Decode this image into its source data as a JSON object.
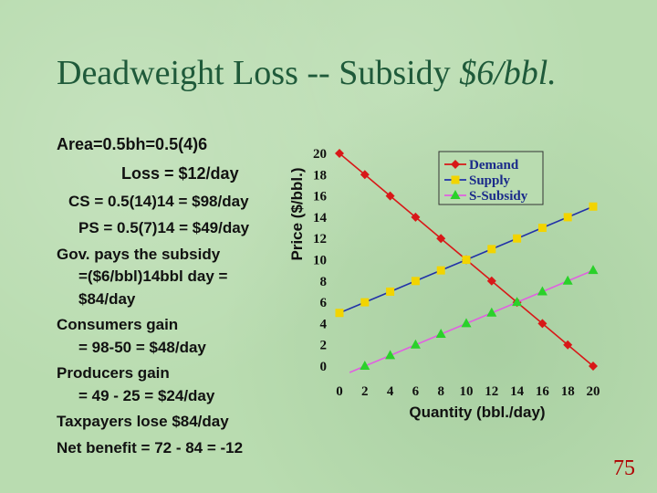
{
  "slide": {
    "title_plain": "Deadweight Loss -- Subsidy ",
    "title_italic": "$6/bbl.",
    "page_number": "75"
  },
  "text_lines": [
    "Area=0.5bh=0.5(4)6",
    "Loss = $12/day",
    "CS = 0.5(14)14 = $98/day",
    "PS = 0.5(7)14 = $49/day",
    "Gov. pays the subsidy",
    "=($6/bbl)14bbl day =",
    "$84/day",
    "Consumers gain",
    "= 98-50 = $48/day",
    "Producers gain",
    "= 49 - 25 = $24/day",
    "Taxpayers lose $84/day",
    "Net benefit = 72 - 84 = -12"
  ],
  "chart_data": {
    "type": "line",
    "ylabel": "Price ($/bbl.)",
    "xlabel": "Quantity (bbl./day)",
    "xlim": [
      0,
      20
    ],
    "ylim": [
      0,
      20
    ],
    "x_ticks": [
      0,
      2,
      4,
      6,
      8,
      10,
      12,
      14,
      16,
      18,
      20
    ],
    "y_ticks": [
      0,
      2,
      4,
      6,
      8,
      10,
      12,
      14,
      16,
      18,
      20
    ],
    "grid": false,
    "legend_position": "top-right",
    "series": [
      {
        "name": "Demand",
        "color": "#d81818",
        "marker": "diamond",
        "x": [
          0,
          2,
          4,
          6,
          8,
          10,
          12,
          14,
          16,
          18,
          20
        ],
        "y": [
          20,
          18,
          16,
          14,
          12,
          10,
          8,
          6,
          4,
          2,
          0
        ]
      },
      {
        "name": "Supply",
        "color": "#f2d400",
        "line_color": "#2232a8",
        "marker": "square",
        "x": [
          0,
          2,
          4,
          6,
          8,
          10,
          12,
          14,
          16,
          18,
          20
        ],
        "y": [
          5,
          6,
          7,
          8,
          9,
          10,
          11,
          12,
          13,
          14,
          15
        ]
      },
      {
        "name": "S-Subsidy",
        "color": "#2ad12a",
        "line_color": "#e060e0",
        "marker": "triangle",
        "x": [
          2,
          4,
          6,
          8,
          10,
          12,
          14,
          16,
          18,
          20
        ],
        "y": [
          0,
          1,
          2,
          3,
          4,
          5,
          6,
          7,
          8,
          9
        ]
      }
    ]
  }
}
